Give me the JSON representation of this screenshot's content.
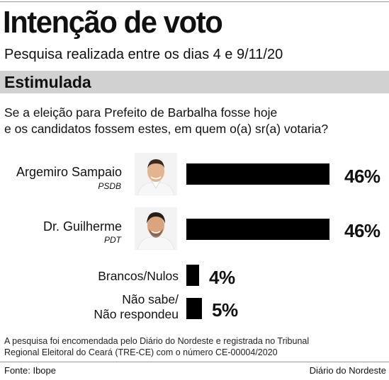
{
  "header": {
    "title": "Intenção de voto",
    "subtitle": "Pesquisa realizada entre os dias 4 e 9/11/20"
  },
  "section": {
    "label": "Estimulada"
  },
  "question": {
    "line1": "Se a eleição para Prefeito de Barbalha fosse hoje",
    "line2": "e os candidatos fossem estes, em quem o(a) sr(a) votaria?"
  },
  "candidates": [
    {
      "name": "Argemiro Sampaio",
      "party": "PSDB",
      "pct_label": "46%",
      "photo_icon": "candidate-photo"
    },
    {
      "name": "Dr. Guilherme",
      "party": "PDT",
      "pct_label": "46%",
      "photo_icon": "candidate-photo"
    }
  ],
  "others": [
    {
      "label_line1": "Brancos/Nulos",
      "label_line2": "",
      "pct_label": "4%"
    },
    {
      "label_line1": "Não sabe/",
      "label_line2": "Não respondeu",
      "pct_label": "5%"
    }
  ],
  "footnote": {
    "line1": "A pesquisa foi encomendada pelo Diário do Nordeste e registrada no Tribunal",
    "line2": "Regional Eleitoral do Ceará (TRE-CE) com o número CE-00004/2020"
  },
  "footer": {
    "source": "Fonte: Ibope",
    "credit": "Diário do Nordeste"
  },
  "colors": {
    "bar": "#000000",
    "section_bg": "#d1d1d1",
    "text": "#111111"
  },
  "chart_data": {
    "type": "bar",
    "orientation": "horizontal",
    "title": "Intenção de voto",
    "subtitle": "Pesquisa realizada entre os dias 4 e 9/11/20",
    "categories": [
      "Argemiro Sampaio",
      "Dr. Guilherme",
      "Brancos/Nulos",
      "Não sabe/ Não respondeu"
    ],
    "values": [
      46,
      46,
      4,
      5
    ],
    "unit": "%",
    "xlim": [
      0,
      46
    ],
    "grid": false,
    "legend": "none"
  }
}
